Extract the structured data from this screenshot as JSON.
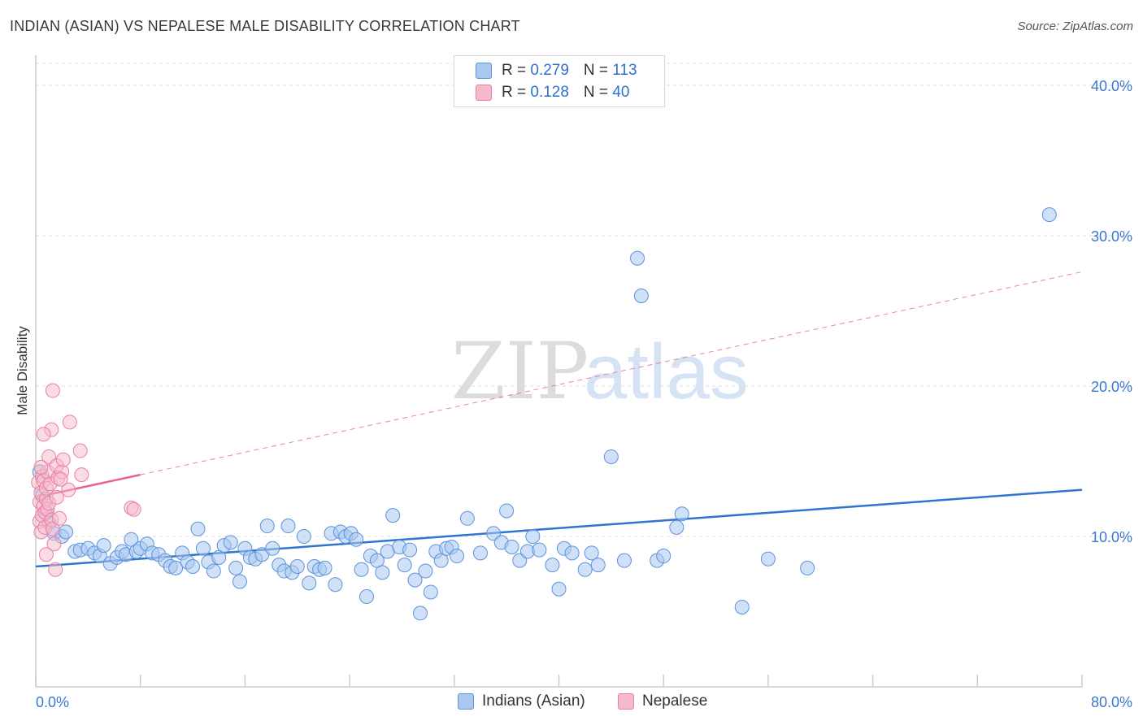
{
  "title": "INDIAN (ASIAN) VS NEPALESE MALE DISABILITY CORRELATION CHART",
  "source": "Source: ZipAtlas.com",
  "watermark": {
    "zip": "ZIP",
    "atlas": "atlas"
  },
  "colors": {
    "blue_fill": "#a9c8f0",
    "blue_stroke": "#5b93dd",
    "blue_line": "#2f74d0",
    "pink_fill": "#f6b9cc",
    "pink_stroke": "#ea7fa3",
    "pink_line": "#e8648f",
    "grid": "#dddddd",
    "tick_label": "#3b78d0"
  },
  "legend": {
    "rows": [
      {
        "r_label": "R = ",
        "r_value": "0.279",
        "n_label": "N = ",
        "n_value": "113"
      },
      {
        "r_label": "R = ",
        "r_value": "0.128",
        "n_label": "N = ",
        "n_value": "40"
      }
    ],
    "bottom": [
      "Indians (Asian)",
      "Nepalese"
    ]
  },
  "chart_data": {
    "type": "scatter",
    "title": "INDIAN (ASIAN) VS NEPALESE MALE DISABILITY CORRELATION CHART",
    "xlabel": "",
    "ylabel": "Male Disability",
    "xlim": [
      0,
      80
    ],
    "ylim": [
      0,
      42
    ],
    "x_tick_labels": [
      "0.0%",
      "80.0%"
    ],
    "y_ticks": [
      10,
      20,
      30,
      40
    ],
    "y_tick_labels": [
      "10.0%",
      "20.0%",
      "30.0%",
      "40.0%"
    ],
    "grid": "horizontal dashed",
    "legend_position": "top-center",
    "series": [
      {
        "name": "Indians (Asian)",
        "color": "#a9c8f0",
        "r": 0.279,
        "n": 113,
        "trend": {
          "x": [
            0,
            80
          ],
          "y": [
            8.0,
            13.1
          ]
        },
        "points": [
          [
            0.3,
            14.3
          ],
          [
            0.5,
            12.7
          ],
          [
            0.8,
            11.6
          ],
          [
            1.0,
            10.9
          ],
          [
            1.4,
            10.2
          ],
          [
            2.0,
            10.0
          ],
          [
            2.3,
            10.3
          ],
          [
            3.0,
            9.0
          ],
          [
            3.4,
            9.1
          ],
          [
            4.0,
            9.2
          ],
          [
            4.5,
            8.9
          ],
          [
            4.9,
            8.7
          ],
          [
            5.2,
            9.4
          ],
          [
            5.7,
            8.2
          ],
          [
            6.2,
            8.6
          ],
          [
            6.6,
            9.0
          ],
          [
            6.9,
            8.8
          ],
          [
            7.3,
            9.8
          ],
          [
            7.7,
            9.0
          ],
          [
            8.0,
            9.2
          ],
          [
            8.5,
            9.5
          ],
          [
            8.9,
            8.9
          ],
          [
            9.4,
            8.8
          ],
          [
            9.9,
            8.4
          ],
          [
            10.3,
            8.0
          ],
          [
            10.7,
            7.9
          ],
          [
            11.2,
            8.9
          ],
          [
            11.6,
            8.3
          ],
          [
            12.0,
            8.0
          ],
          [
            12.4,
            10.5
          ],
          [
            12.8,
            9.2
          ],
          [
            13.2,
            8.3
          ],
          [
            13.6,
            7.7
          ],
          [
            14.0,
            8.6
          ],
          [
            14.4,
            9.4
          ],
          [
            14.9,
            9.6
          ],
          [
            15.3,
            7.9
          ],
          [
            15.6,
            7.0
          ],
          [
            16.0,
            9.2
          ],
          [
            16.4,
            8.6
          ],
          [
            16.8,
            8.5
          ],
          [
            17.3,
            8.8
          ],
          [
            17.7,
            10.7
          ],
          [
            18.1,
            9.2
          ],
          [
            18.6,
            8.1
          ],
          [
            19.0,
            7.7
          ],
          [
            19.3,
            10.7
          ],
          [
            19.6,
            7.6
          ],
          [
            20.0,
            8.0
          ],
          [
            20.5,
            10.0
          ],
          [
            20.9,
            6.9
          ],
          [
            21.3,
            8.0
          ],
          [
            21.7,
            7.8
          ],
          [
            22.1,
            7.9
          ],
          [
            22.6,
            10.2
          ],
          [
            22.9,
            6.8
          ],
          [
            23.3,
            10.3
          ],
          [
            23.7,
            10.0
          ],
          [
            24.1,
            10.2
          ],
          [
            24.5,
            9.8
          ],
          [
            24.9,
            7.8
          ],
          [
            25.3,
            6.0
          ],
          [
            25.6,
            8.7
          ],
          [
            26.1,
            8.4
          ],
          [
            26.5,
            7.6
          ],
          [
            26.9,
            9.0
          ],
          [
            27.3,
            11.4
          ],
          [
            27.8,
            9.3
          ],
          [
            28.2,
            8.1
          ],
          [
            28.6,
            9.1
          ],
          [
            29.0,
            7.1
          ],
          [
            29.4,
            4.9
          ],
          [
            29.8,
            7.7
          ],
          [
            30.2,
            6.3
          ],
          [
            30.6,
            9.0
          ],
          [
            31.0,
            8.4
          ],
          [
            31.4,
            9.2
          ],
          [
            31.8,
            9.3
          ],
          [
            32.2,
            8.7
          ],
          [
            33.0,
            11.2
          ],
          [
            34.0,
            8.9
          ],
          [
            35.0,
            10.2
          ],
          [
            35.6,
            9.6
          ],
          [
            36.0,
            11.7
          ],
          [
            36.4,
            9.3
          ],
          [
            37.0,
            8.4
          ],
          [
            37.6,
            9.0
          ],
          [
            38.0,
            10.0
          ],
          [
            38.5,
            9.1
          ],
          [
            39.5,
            8.1
          ],
          [
            40.0,
            6.5
          ],
          [
            40.4,
            9.2
          ],
          [
            41.0,
            8.9
          ],
          [
            42.0,
            7.8
          ],
          [
            42.5,
            8.9
          ],
          [
            43.0,
            8.1
          ],
          [
            44.0,
            15.3
          ],
          [
            45.0,
            8.4
          ],
          [
            46.0,
            28.5
          ],
          [
            46.3,
            26.0
          ],
          [
            47.5,
            8.4
          ],
          [
            48.0,
            8.7
          ],
          [
            49.0,
            10.6
          ],
          [
            49.4,
            11.5
          ],
          [
            54.0,
            5.3
          ],
          [
            56.0,
            8.5
          ],
          [
            59.0,
            7.9
          ],
          [
            77.5,
            31.4
          ]
        ]
      },
      {
        "name": "Nepalese",
        "color": "#f6b9cc",
        "r": 0.128,
        "n": 40,
        "trend": {
          "x": [
            0,
            8
          ],
          "y": [
            12.6,
            14.1
          ]
        },
        "trend_extension": {
          "x": [
            8,
            80
          ],
          "y": [
            14.1,
            27.6
          ]
        },
        "points": [
          [
            0.2,
            13.6
          ],
          [
            0.3,
            12.3
          ],
          [
            0.3,
            11.0
          ],
          [
            0.4,
            10.3
          ],
          [
            0.4,
            12.9
          ],
          [
            0.5,
            11.4
          ],
          [
            0.5,
            14.0
          ],
          [
            0.6,
            13.7
          ],
          [
            0.6,
            12.0
          ],
          [
            0.7,
            11.6
          ],
          [
            0.7,
            10.6
          ],
          [
            0.8,
            12.5
          ],
          [
            0.8,
            13.2
          ],
          [
            0.9,
            11.8
          ],
          [
            0.9,
            14.3
          ],
          [
            1.0,
            12.2
          ],
          [
            1.0,
            15.3
          ],
          [
            1.1,
            13.5
          ],
          [
            1.2,
            11.1
          ],
          [
            1.2,
            17.1
          ],
          [
            1.3,
            19.7
          ],
          [
            1.3,
            10.5
          ],
          [
            1.4,
            9.5
          ],
          [
            1.5,
            7.8
          ],
          [
            1.6,
            14.7
          ],
          [
            1.6,
            12.6
          ],
          [
            1.7,
            13.9
          ],
          [
            1.8,
            11.2
          ],
          [
            2.0,
            14.3
          ],
          [
            2.1,
            15.1
          ],
          [
            2.5,
            13.1
          ],
          [
            2.6,
            17.6
          ],
          [
            3.4,
            15.7
          ],
          [
            3.5,
            14.1
          ],
          [
            7.3,
            11.9
          ],
          [
            7.5,
            11.8
          ],
          [
            0.6,
            16.8
          ],
          [
            0.8,
            8.8
          ],
          [
            1.9,
            13.8
          ],
          [
            0.4,
            14.6
          ]
        ]
      }
    ]
  }
}
